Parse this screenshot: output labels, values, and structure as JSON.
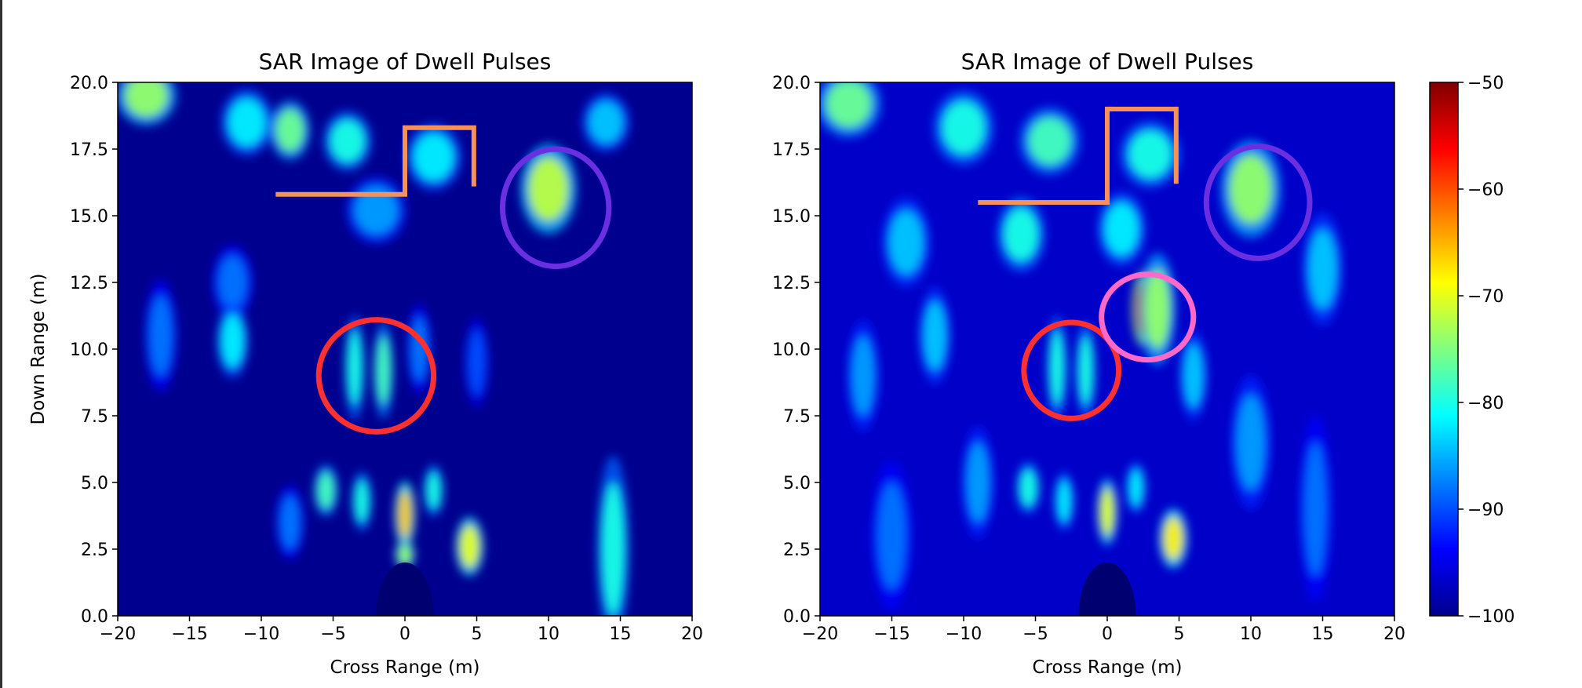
{
  "chart_data": [
    {
      "type": "heatmap",
      "title": "SAR Image of Dwell Pulses",
      "xlabel": "Cross Range (m)",
      "ylabel": "Down Range (m)",
      "xlim": [
        -20,
        20
      ],
      "ylim": [
        0,
        20
      ],
      "xticks": [
        "−20",
        "−15",
        "−10",
        "−5",
        "0",
        "5",
        "10",
        "15",
        "20"
      ],
      "yticks": [
        "0.0",
        "2.5",
        "5.0",
        "7.5",
        "10.0",
        "12.5",
        "15.0",
        "17.5",
        "20.0"
      ],
      "colormap": "jet",
      "clim": [
        -100,
        -50
      ],
      "hotspots": [
        {
          "x": -18,
          "y": 19.5,
          "value": -74,
          "sx": 1.5,
          "sy": 0.8
        },
        {
          "x": -11,
          "y": 18.5,
          "value": -82,
          "sx": 1.3,
          "sy": 0.9
        },
        {
          "x": -8,
          "y": 18.2,
          "value": -76,
          "sx": 1.0,
          "sy": 0.8
        },
        {
          "x": -4,
          "y": 17.8,
          "value": -80,
          "sx": 1.2,
          "sy": 0.8
        },
        {
          "x": 2,
          "y": 17.2,
          "value": -82,
          "sx": 1.4,
          "sy": 0.9
        },
        {
          "x": -2,
          "y": 15.2,
          "value": -86,
          "sx": 1.5,
          "sy": 0.9
        },
        {
          "x": 10,
          "y": 16.0,
          "value": -72,
          "sx": 1.4,
          "sy": 1.2
        },
        {
          "x": 14,
          "y": 18.5,
          "value": -84,
          "sx": 1.2,
          "sy": 0.8
        },
        {
          "x": -12,
          "y": 12.5,
          "value": -88,
          "sx": 1.0,
          "sy": 1.0
        },
        {
          "x": -17,
          "y": 10.5,
          "value": -88,
          "sx": 0.8,
          "sy": 1.5
        },
        {
          "x": -12,
          "y": 10.3,
          "value": -82,
          "sx": 0.8,
          "sy": 1.0
        },
        {
          "x": -3.5,
          "y": 9.3,
          "value": -80,
          "sx": 0.5,
          "sy": 1.4
        },
        {
          "x": -1.5,
          "y": 9.2,
          "value": -78,
          "sx": 0.5,
          "sy": 1.3
        },
        {
          "x": 1,
          "y": 10.0,
          "value": -88,
          "sx": 0.6,
          "sy": 1.2
        },
        {
          "x": 5,
          "y": 9.5,
          "value": -90,
          "sx": 0.6,
          "sy": 1.2
        },
        {
          "x": -5.5,
          "y": 4.7,
          "value": -78,
          "sx": 0.6,
          "sy": 0.7
        },
        {
          "x": -3,
          "y": 4.3,
          "value": -80,
          "sx": 0.5,
          "sy": 0.8
        },
        {
          "x": 0,
          "y": 3.8,
          "value": -66,
          "sx": 0.5,
          "sy": 0.9
        },
        {
          "x": 2,
          "y": 4.7,
          "value": -80,
          "sx": 0.5,
          "sy": 0.7
        },
        {
          "x": 4.5,
          "y": 2.6,
          "value": -70,
          "sx": 0.7,
          "sy": 0.8
        },
        {
          "x": 0,
          "y": 2.3,
          "value": -74,
          "sx": 0.5,
          "sy": 0.4
        },
        {
          "x": 14.5,
          "y": 2.5,
          "value": -80,
          "sx": 0.8,
          "sy": 2.5
        },
        {
          "x": -8,
          "y": 3.5,
          "value": -88,
          "sx": 0.7,
          "sy": 1.0
        }
      ],
      "dark_dome": {
        "x": 0,
        "y": 0,
        "rx": 2,
        "ry": 2
      },
      "annotations": [
        {
          "shape": "ellipse",
          "color": "#ff3030",
          "x": -2,
          "y": 9.0,
          "rx": 4.0,
          "ry": 2.1
        },
        {
          "shape": "ellipse",
          "color": "#6a2fe0",
          "x": 10.5,
          "y": 15.3,
          "rx": 3.7,
          "ry": 2.2
        },
        {
          "shape": "polyline",
          "color": "#f6915a",
          "points": [
            [
              -9,
              15.8
            ],
            [
              0,
              15.8
            ],
            [
              0,
              18.3
            ],
            [
              4.8,
              18.3
            ],
            [
              4.8,
              16.1
            ]
          ]
        }
      ]
    },
    {
      "type": "heatmap",
      "title": "SAR Image of Dwell Pulses",
      "xlabel": "Cross Range (m)",
      "ylabel": "",
      "xlim": [
        -20,
        20
      ],
      "ylim": [
        0,
        20
      ],
      "xticks": [
        "−20",
        "−15",
        "−10",
        "−5",
        "0",
        "5",
        "10",
        "15",
        "20"
      ],
      "yticks": [
        "0.0",
        "2.5",
        "5.0",
        "7.5",
        "10.0",
        "12.5",
        "15.0",
        "17.5",
        "20.0"
      ],
      "colormap": "jet",
      "clim": [
        -100,
        -50
      ],
      "hotspots": [
        {
          "x": -18,
          "y": 19.2,
          "value": -76,
          "sx": 1.6,
          "sy": 0.9
        },
        {
          "x": -10,
          "y": 18.3,
          "value": -80,
          "sx": 1.5,
          "sy": 1.0
        },
        {
          "x": -4,
          "y": 17.8,
          "value": -78,
          "sx": 1.5,
          "sy": 0.9
        },
        {
          "x": 3,
          "y": 17.3,
          "value": -80,
          "sx": 1.5,
          "sy": 0.9
        },
        {
          "x": -14,
          "y": 14.0,
          "value": -84,
          "sx": 1.2,
          "sy": 1.2
        },
        {
          "x": -6,
          "y": 14.3,
          "value": -80,
          "sx": 1.2,
          "sy": 1.0
        },
        {
          "x": 1,
          "y": 14.5,
          "value": -82,
          "sx": 1.2,
          "sy": 1.0
        },
        {
          "x": 10,
          "y": 16.0,
          "value": -74,
          "sx": 1.5,
          "sy": 1.3
        },
        {
          "x": 15,
          "y": 13.0,
          "value": -84,
          "sx": 1.0,
          "sy": 1.5
        },
        {
          "x": 2.5,
          "y": 11.5,
          "value": -54,
          "sx": 0.55,
          "sy": 1.0
        },
        {
          "x": 3.5,
          "y": 11.5,
          "value": -74,
          "sx": 0.9,
          "sy": 1.5
        },
        {
          "x": -12,
          "y": 10.5,
          "value": -84,
          "sx": 0.8,
          "sy": 1.3
        },
        {
          "x": -17,
          "y": 9.0,
          "value": -86,
          "sx": 0.8,
          "sy": 1.5
        },
        {
          "x": -3.5,
          "y": 9.3,
          "value": -80,
          "sx": 0.5,
          "sy": 1.4
        },
        {
          "x": -1.5,
          "y": 9.2,
          "value": -80,
          "sx": 0.5,
          "sy": 1.3
        },
        {
          "x": 6,
          "y": 9.0,
          "value": -84,
          "sx": 0.7,
          "sy": 1.2
        },
        {
          "x": 10,
          "y": 6.5,
          "value": -86,
          "sx": 1.0,
          "sy": 1.8
        },
        {
          "x": -5.5,
          "y": 4.8,
          "value": -80,
          "sx": 0.6,
          "sy": 0.7
        },
        {
          "x": -3,
          "y": 4.3,
          "value": -82,
          "sx": 0.5,
          "sy": 0.8
        },
        {
          "x": 0,
          "y": 3.9,
          "value": -70,
          "sx": 0.5,
          "sy": 0.9
        },
        {
          "x": 2,
          "y": 4.8,
          "value": -82,
          "sx": 0.5,
          "sy": 0.7
        },
        {
          "x": 4.6,
          "y": 2.9,
          "value": -68,
          "sx": 0.7,
          "sy": 0.8
        },
        {
          "x": 14.5,
          "y": 4.0,
          "value": -88,
          "sx": 0.8,
          "sy": 2.5
        },
        {
          "x": -9,
          "y": 5.0,
          "value": -86,
          "sx": 0.8,
          "sy": 1.5
        },
        {
          "x": -15,
          "y": 3.0,
          "value": -88,
          "sx": 1.0,
          "sy": 2.0
        }
      ],
      "dark_dome": {
        "x": 0,
        "y": 0,
        "rx": 2,
        "ry": 2
      },
      "annotations": [
        {
          "shape": "ellipse",
          "color": "#ff3030",
          "x": -2.5,
          "y": 9.2,
          "rx": 3.3,
          "ry": 1.8
        },
        {
          "shape": "ellipse",
          "color": "#ff69c8",
          "x": 2.8,
          "y": 11.2,
          "rx": 3.2,
          "ry": 1.6
        },
        {
          "shape": "ellipse",
          "color": "#6a2fe0",
          "x": 10.5,
          "y": 15.5,
          "rx": 3.6,
          "ry": 2.1
        },
        {
          "shape": "polyline",
          "color": "#f6915a",
          "points": [
            [
              -9,
              15.5
            ],
            [
              0,
              15.5
            ],
            [
              0,
              19.0
            ],
            [
              4.8,
              19.0
            ],
            [
              4.8,
              16.2
            ]
          ]
        }
      ]
    }
  ],
  "colorbar": {
    "colormap": "jet",
    "clim": [
      -100,
      -50
    ],
    "ticks": [
      {
        "value": -50,
        "label": "−50"
      },
      {
        "value": -60,
        "label": "−60"
      },
      {
        "value": -70,
        "label": "−70"
      },
      {
        "value": -80,
        "label": "−80"
      },
      {
        "value": -90,
        "label": "−90"
      },
      {
        "value": -100,
        "label": "−100"
      }
    ]
  }
}
